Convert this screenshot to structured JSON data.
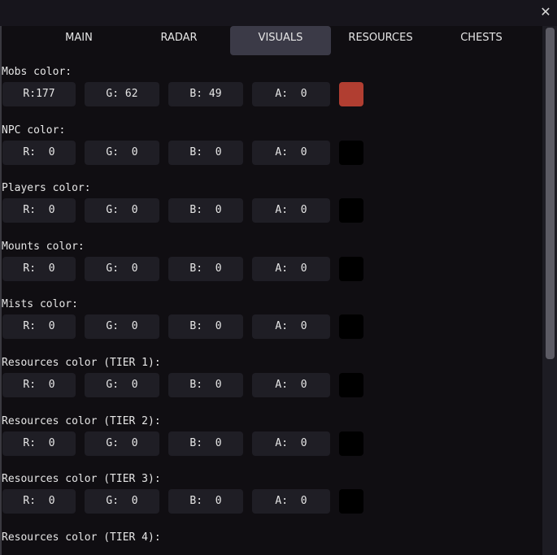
{
  "window": {
    "close_icon": "close-x-icon"
  },
  "tabs": [
    {
      "label": "MAIN",
      "active": false
    },
    {
      "label": "RADAR",
      "active": false
    },
    {
      "label": "VISUALS",
      "active": true
    },
    {
      "label": "RESOURCES",
      "active": false
    },
    {
      "label": "CHESTS",
      "active": false
    }
  ],
  "sections": [
    {
      "label": "Mobs color:",
      "r": "R:177",
      "g": "G: 62",
      "b": "B: 49",
      "a": "A:  0",
      "swatch": "#b13e31"
    },
    {
      "label": "NPC color:",
      "r": "R:  0",
      "g": "G:  0",
      "b": "B:  0",
      "a": "A:  0",
      "swatch": "#000000"
    },
    {
      "label": "Players color:",
      "r": "R:  0",
      "g": "G:  0",
      "b": "B:  0",
      "a": "A:  0",
      "swatch": "#000000"
    },
    {
      "label": "Mounts color:",
      "r": "R:  0",
      "g": "G:  0",
      "b": "B:  0",
      "a": "A:  0",
      "swatch": "#000000"
    },
    {
      "label": "Mists color:",
      "r": "R:  0",
      "g": "G:  0",
      "b": "B:  0",
      "a": "A:  0",
      "swatch": "#000000"
    },
    {
      "label": "Resources color (TIER 1):",
      "r": "R:  0",
      "g": "G:  0",
      "b": "B:  0",
      "a": "A:  0",
      "swatch": "#000000"
    },
    {
      "label": "Resources color (TIER 2):",
      "r": "R:  0",
      "g": "G:  0",
      "b": "B:  0",
      "a": "A:  0",
      "swatch": "#000000"
    },
    {
      "label": "Resources color (TIER 3):",
      "r": "R:  0",
      "g": "G:  0",
      "b": "B:  0",
      "a": "A:  0",
      "swatch": "#000000"
    },
    {
      "label": "Resources color (TIER 4):"
    }
  ],
  "scrollbar": {
    "position_fraction": 0.0,
    "visible_fraction": 0.63
  }
}
